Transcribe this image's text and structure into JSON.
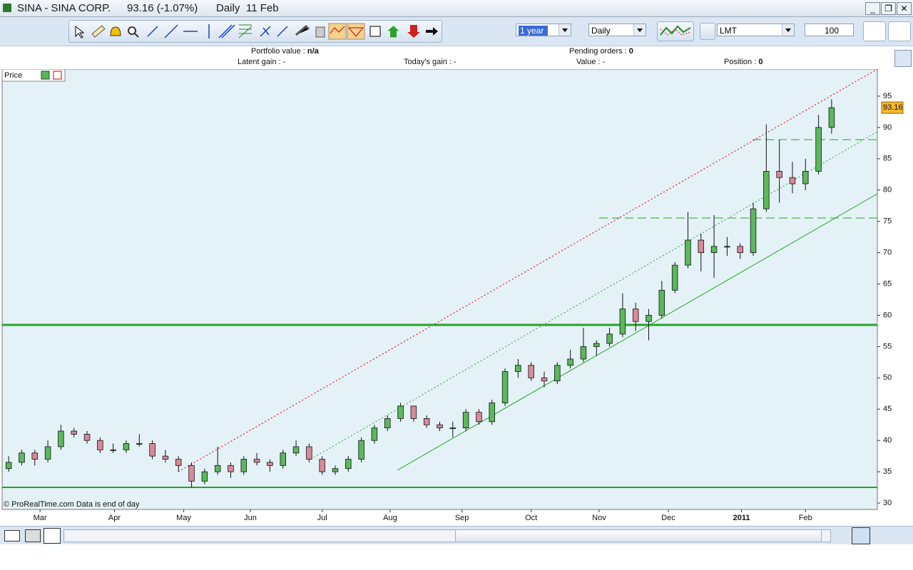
{
  "window": {
    "symbol": "SINA - SINA CORP.",
    "quote": "93.16 (-1.07%)",
    "period": "Daily",
    "date": "11 Feb"
  },
  "toolbar": {
    "range": "1 year",
    "interval": "Daily",
    "order_type": "LMT",
    "quantity": 100
  },
  "portfolio": {
    "portfolio_value_label": "Portfolio value :",
    "portfolio_value": "n/a",
    "pending_orders_label": "Pending orders :",
    "pending_orders": 0,
    "latent_gain_label": "Latent gain :",
    "latent_gain": "-",
    "todays_gain_label": "Today's gain :",
    "todays_gain": "-",
    "value_label": "Value :",
    "value": "-",
    "position_label": "Position :",
    "position": 0
  },
  "chart_data": {
    "type": "candlestick",
    "panel_label": "Price",
    "footer": "© ProRealTime.com  Data is end of day",
    "up_color": "#5cb85c",
    "down_color": "#d9899a",
    "open": [
      35.5,
      36.5,
      38,
      37,
      39,
      41.5,
      41,
      40,
      38.5,
      38.5,
      39.5,
      39.5,
      37.5,
      37,
      36,
      33.5,
      35,
      36,
      35,
      37,
      36.5,
      36,
      38,
      39,
      37,
      35,
      35.5,
      37,
      40,
      42,
      43.5,
      45.5,
      43.5,
      42.5,
      42,
      42,
      44.5,
      43,
      46,
      51,
      52,
      50,
      49.5,
      52,
      53,
      55,
      55.5,
      57,
      61,
      59,
      60,
      64,
      68,
      72,
      70,
      71,
      71,
      70,
      77,
      83,
      82,
      81,
      83,
      90
    ],
    "high": [
      37.5,
      38.5,
      38.5,
      40,
      42.5,
      42,
      41.5,
      40.5,
      39.5,
      40,
      41,
      40,
      38.5,
      37.5,
      36.5,
      35.5,
      39,
      36.5,
      37.5,
      38,
      37,
      38.5,
      40,
      39.5,
      37.5,
      36,
      37.5,
      40.5,
      42.5,
      44,
      46,
      45.5,
      44,
      43,
      43,
      45,
      45,
      46.5,
      51.5,
      53,
      52.5,
      51,
      52.5,
      54.5,
      58,
      56,
      58,
      63.5,
      62,
      61,
      65.5,
      68.5,
      76.5,
      73,
      76,
      72.5,
      71.5,
      78,
      90.5,
      88,
      84.5,
      85,
      92,
      94.5
    ],
    "low": [
      35,
      36,
      36,
      36.5,
      38.5,
      40.5,
      39.5,
      38,
      38,
      38,
      39,
      37,
      36.5,
      35,
      32.5,
      33,
      34.5,
      34,
      34.5,
      36,
      35,
      35.5,
      37.5,
      36.5,
      34.5,
      34.5,
      35,
      36.5,
      39.5,
      41.5,
      43,
      43,
      42,
      41.5,
      40.5,
      41.5,
      42.5,
      42.5,
      45.5,
      50,
      49.5,
      48.5,
      49,
      51.5,
      52.5,
      53.5,
      55,
      56.5,
      57.5,
      56,
      59.5,
      63.5,
      67.5,
      67,
      66,
      69.5,
      69,
      69.5,
      76.5,
      78,
      79.5,
      80,
      82.5,
      89
    ],
    "close": [
      36.5,
      38,
      37,
      39,
      41.5,
      41,
      40,
      38.5,
      38.5,
      39.5,
      39.5,
      37.5,
      37,
      36,
      33.5,
      35,
      36,
      35,
      37,
      36.5,
      36,
      38,
      39,
      37,
      35,
      35.5,
      37,
      40,
      42,
      43.5,
      45.5,
      43.5,
      42.5,
      42,
      42,
      44.5,
      43,
      46,
      51,
      52,
      50,
      49.5,
      52,
      53,
      55,
      55.5,
      57,
      61,
      59,
      60,
      64,
      68,
      72,
      70,
      71,
      71,
      70,
      77,
      83,
      82,
      81,
      83,
      90,
      93.16
    ],
    "xlim": [
      -0.5,
      66.5
    ],
    "xticks": [
      {
        "value": 2.4,
        "label": "Mar"
      },
      {
        "value": 8.1,
        "label": "Apr"
      },
      {
        "value": 13.4,
        "label": "May"
      },
      {
        "value": 18.5,
        "label": "Jun"
      },
      {
        "value": 24.0,
        "label": "Jul"
      },
      {
        "value": 29.2,
        "label": "Aug"
      },
      {
        "value": 34.7,
        "label": "Sep"
      },
      {
        "value": 40.0,
        "label": "Oct"
      },
      {
        "value": 45.2,
        "label": "Nov"
      },
      {
        "value": 50.5,
        "label": "Dec"
      },
      {
        "value": 56.1,
        "label": "2011"
      },
      {
        "value": 61.0,
        "label": "Feb"
      }
    ],
    "ylim": [
      28.98,
      99.32
    ],
    "yticks": [
      30,
      35,
      40,
      45,
      50,
      55,
      60,
      65,
      70,
      75,
      80,
      85,
      90,
      95
    ]
  }
}
